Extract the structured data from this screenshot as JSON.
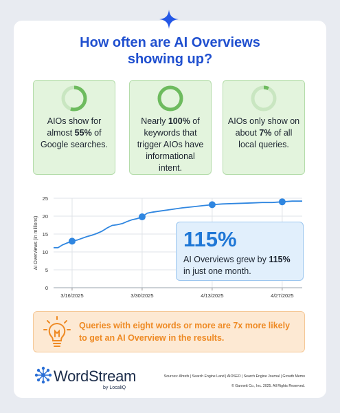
{
  "title_line1": "How often are AI Overviews",
  "title_line2": "showing up?",
  "stats": [
    {
      "pre": "AIOs show for almost ",
      "bold": "55%",
      "post": " of Google searches.",
      "fraction": 0.55
    },
    {
      "pre": "Nearly ",
      "bold": "100%",
      "post": " of keywords that trigger AIOs have informational intent.",
      "fraction": 1.0
    },
    {
      "pre": "AIOs only show on about ",
      "bold": "7%",
      "post": " of all local queries.",
      "fraction": 0.07
    }
  ],
  "chart_data": {
    "type": "line",
    "title": "",
    "xlabel": "",
    "ylabel": "AI Overviews (in millions)",
    "ylim": [
      0,
      25
    ],
    "yticks": [
      0,
      5,
      10,
      15,
      20,
      25
    ],
    "grid": true,
    "xticks": [
      {
        "label": "3/16/2025",
        "day": 0
      },
      {
        "label": "3/30/2025",
        "day": 14
      },
      {
        "label": "4/13/2025",
        "day": 28
      },
      {
        "label": "4/27/2025",
        "day": 42
      }
    ],
    "series": [
      {
        "name": "",
        "color": "#2f86e0",
        "points": [
          [
            -3.7,
            11.2
          ],
          [
            -2.8,
            11.2
          ],
          [
            -2,
            11.9
          ],
          [
            -1,
            12.5
          ],
          [
            0,
            13.0
          ],
          [
            1,
            13.3
          ],
          [
            2,
            13.8
          ],
          [
            3,
            14.3
          ],
          [
            4,
            14.7
          ],
          [
            5,
            15.2
          ],
          [
            6,
            15.8
          ],
          [
            7,
            16.7
          ],
          [
            8,
            17.4
          ],
          [
            9,
            17.6
          ],
          [
            10,
            17.9
          ],
          [
            11,
            18.5
          ],
          [
            12,
            19.0
          ],
          [
            13,
            19.3
          ],
          [
            14,
            19.8
          ],
          [
            15,
            20.8
          ],
          [
            16,
            21.1
          ],
          [
            17,
            21.3
          ],
          [
            18,
            21.5
          ],
          [
            20,
            21.9
          ],
          [
            22,
            22.3
          ],
          [
            24,
            22.6
          ],
          [
            26,
            22.9
          ],
          [
            28,
            23.2
          ],
          [
            30,
            23.4
          ],
          [
            32,
            23.5
          ],
          [
            34,
            23.6
          ],
          [
            36,
            23.7
          ],
          [
            38,
            23.8
          ],
          [
            40,
            23.8
          ],
          [
            42,
            24.0
          ],
          [
            44,
            24.2
          ],
          [
            46,
            24.2
          ]
        ],
        "markers": [
          [
            0,
            13.0
          ],
          [
            14,
            19.8
          ],
          [
            28,
            23.2
          ],
          [
            42,
            24.0
          ]
        ]
      }
    ]
  },
  "callout": {
    "big": "115%",
    "pre": "AI Overviews grew by ",
    "bold": "115%",
    "post": " in just one month."
  },
  "tip": "Queries with eight words or more are 7x more likely to get an AI Overview in the results.",
  "brand": {
    "name": "WordStream",
    "byline": "by LocaliQ"
  },
  "footer": {
    "sources": "Sources: Ahrefs | Search Engine Land | AIOSEO | Search Engine Journal | Growth Memo",
    "copyright": "© Gannett Co., Inc. 2025. All Rights Reserved."
  },
  "colors": {
    "title": "#1f4fcf",
    "ring": "#6dbb5e",
    "ring_track": "#c9e6c1",
    "line": "#2f86e0",
    "tip_text": "#ee8a24"
  }
}
